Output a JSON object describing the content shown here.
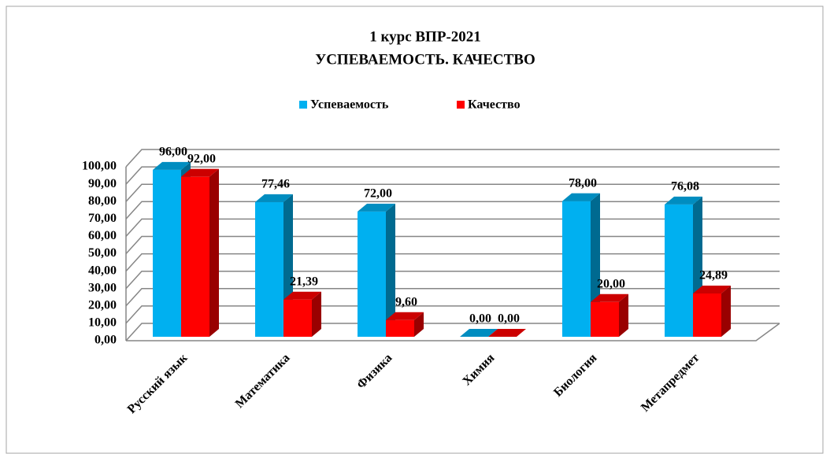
{
  "chart_data": {
    "type": "bar3d",
    "title": "1 курс ВПР-2021",
    "subtitle": "УСПЕВАЕМОСТЬ. КАЧЕСТВО",
    "categories": [
      "Русский язык",
      "Математика",
      "Физика",
      "Химия",
      "Биология",
      "Метапредмет"
    ],
    "series": [
      {
        "name": "Успеваемость",
        "color": "#00b0f0",
        "values": [
          96,
          77.46,
          72,
          0,
          78,
          76.08
        ],
        "value_labels": [
          "96,00",
          "77,46",
          "72,00",
          "0,00",
          "78,00",
          "76,08"
        ]
      },
      {
        "name": "Качество",
        "color": "#ff0000",
        "values": [
          92,
          21.39,
          9.6,
          0,
          20,
          24.89
        ],
        "value_labels": [
          "92,00",
          "21,39",
          "9,60",
          "0,00",
          "20,00",
          "24,89"
        ]
      }
    ],
    "ylim": [
      0,
      100
    ],
    "yticks": [
      {
        "value": 0,
        "label": "0,00"
      },
      {
        "value": 10,
        "label": "10,00"
      },
      {
        "value": 20,
        "label": "20,00"
      },
      {
        "value": 30,
        "label": "30,00"
      },
      {
        "value": 40,
        "label": "40,00"
      },
      {
        "value": 50,
        "label": "50,00"
      },
      {
        "value": 60,
        "label": "60,00"
      },
      {
        "value": 70,
        "label": "70,00"
      },
      {
        "value": 80,
        "label": "80,00"
      },
      {
        "value": 90,
        "label": "90,00"
      },
      {
        "value": 100,
        "label": "100,00"
      }
    ],
    "grid": true,
    "legend": "top"
  }
}
